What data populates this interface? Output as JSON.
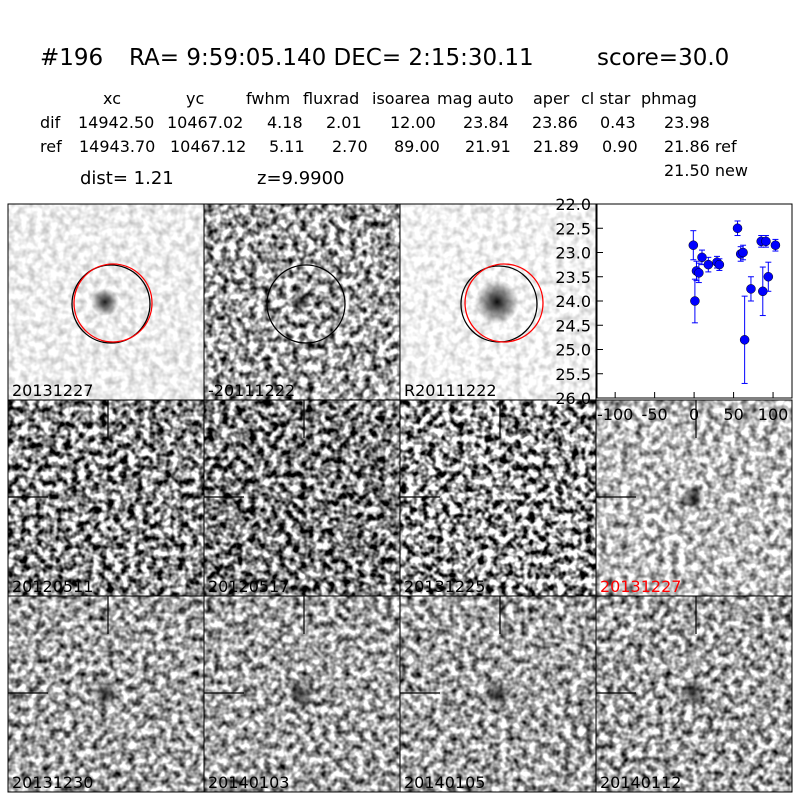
{
  "header": {
    "id": "#196",
    "coords": "RA= 9:59:05.140 DEC= 2:15:30.11",
    "score": "score=30.0"
  },
  "table": {
    "columns": [
      "xc",
      "yc",
      "fwhm",
      "fluxrad",
      "isoarea",
      "mag auto",
      "aper",
      "cl star",
      "phmag"
    ],
    "rows": [
      {
        "label": "dif",
        "cells": [
          "14942.50",
          "10467.02",
          "4.18",
          "2.01",
          "12.00",
          "23.84",
          "23.86",
          "0.43",
          "23.98"
        ]
      },
      {
        "label": "ref",
        "cells": [
          "14943.70",
          "10467.12",
          "5.11",
          "2.70",
          "89.00",
          "21.91",
          "21.89",
          "0.90",
          "21.86 ref"
        ]
      }
    ],
    "extra": "21.50 new",
    "dist": "dist=  1.21",
    "z": "z=9.9900"
  },
  "panels": [
    {
      "label": "20131227",
      "color": "#000000"
    },
    {
      "label": "-20111222",
      "color": "#000000"
    },
    {
      "label": "R20111222",
      "color": "#000000"
    },
    {
      "label": "20120511",
      "color": "#000000"
    },
    {
      "label": "20120517",
      "color": "#000000"
    },
    {
      "label": "20131225",
      "color": "#000000"
    },
    {
      "label": "20131227",
      "color": "#ff0000"
    },
    {
      "label": "20131230",
      "color": "#000000"
    },
    {
      "label": "20140103",
      "color": "#000000"
    },
    {
      "label": "20140105",
      "color": "#000000"
    },
    {
      "label": "20140112",
      "color": "#000000"
    }
  ],
  "chart_data": {
    "type": "errorbar",
    "color": "#0000ff",
    "x": [
      -1,
      1,
      3,
      6,
      10,
      18,
      29,
      32,
      55,
      59,
      62,
      64,
      72,
      85,
      91,
      87,
      94,
      103
    ],
    "values": [
      22.85,
      24.0,
      23.38,
      23.42,
      23.1,
      23.25,
      23.2,
      23.25,
      22.5,
      23.03,
      23.0,
      24.8,
      23.75,
      22.77,
      22.77,
      23.8,
      23.5,
      22.85
    ],
    "errors": [
      0.3,
      0.45,
      0.2,
      0.2,
      0.15,
      0.15,
      0.12,
      0.12,
      0.15,
      0.15,
      0.15,
      0.9,
      0.25,
      0.12,
      0.12,
      0.5,
      0.3,
      0.12
    ],
    "xlim": [
      -123,
      124
    ],
    "ylim": [
      26,
      22
    ],
    "inverted_y": true,
    "xticks": [
      -100,
      -50,
      0,
      50,
      100
    ],
    "yticks": [
      {
        "value": 22,
        "label": "22.0"
      },
      22.5,
      {
        "value": 23,
        "label": "23.0"
      },
      23.5,
      {
        "value": 24,
        "label": "24.0"
      },
      24.5,
      {
        "value": 25,
        "label": "25.0"
      },
      25.5,
      {
        "value": 26,
        "label": "26.0"
      }
    ]
  }
}
